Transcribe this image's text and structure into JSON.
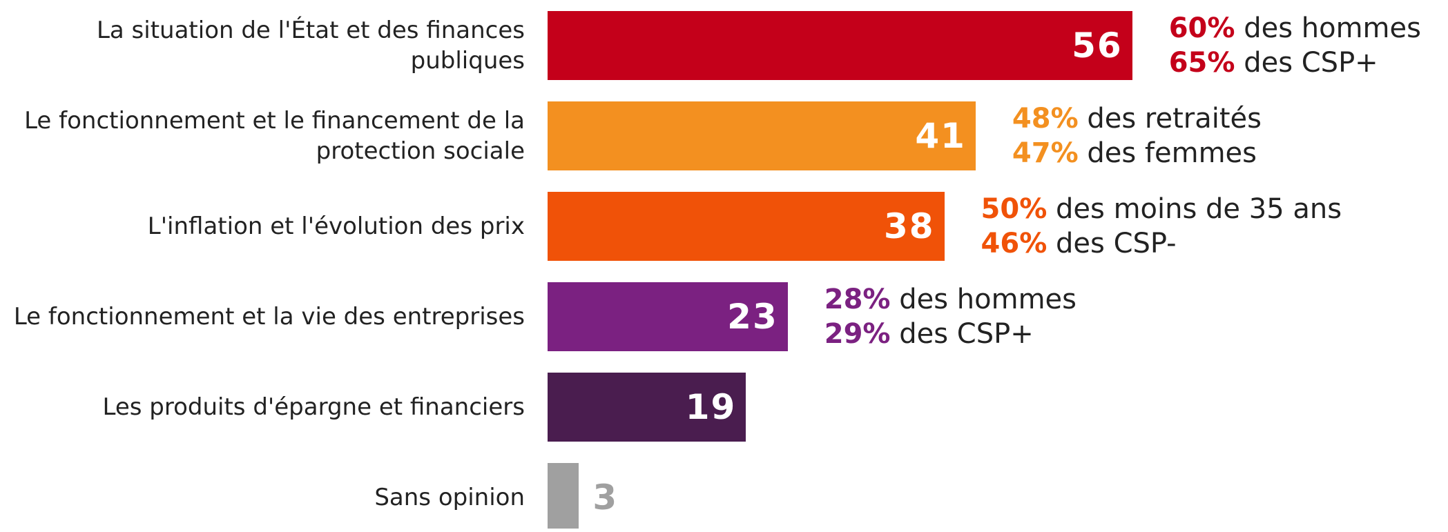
{
  "chart_data": {
    "type": "bar",
    "orientation": "horizontal",
    "categories": [
      "La situation de l'État et des finances publiques",
      "Le fonctionnement et le financement de la protection sociale",
      "L'inflation et l'évolution des prix",
      "Le fonctionnement et la vie des entreprises",
      "Les produits d'épargne et financiers",
      "Sans opinion"
    ],
    "values": [
      56,
      41,
      38,
      23,
      19,
      3
    ],
    "colors": [
      "#c4001a",
      "#f39020",
      "#f05208",
      "#7b2181",
      "#4a1d4f",
      "#a0a0a0"
    ],
    "annotations": [
      [
        {
          "highlight": "60%",
          "text": "des hommes"
        },
        {
          "highlight": "65%",
          "text": "des CSP+"
        }
      ],
      [
        {
          "highlight": "48%",
          "text": "des retraités"
        },
        {
          "highlight": "47%",
          "text": "des femmes"
        }
      ],
      [
        {
          "highlight": "50%",
          "text": "des moins de 35 ans"
        },
        {
          "highlight": "46%",
          "text": "des CSP-"
        }
      ],
      [
        {
          "highlight": "28%",
          "text": "des hommes"
        },
        {
          "highlight": "29%",
          "text": "des CSP+"
        }
      ],
      [],
      []
    ]
  }
}
